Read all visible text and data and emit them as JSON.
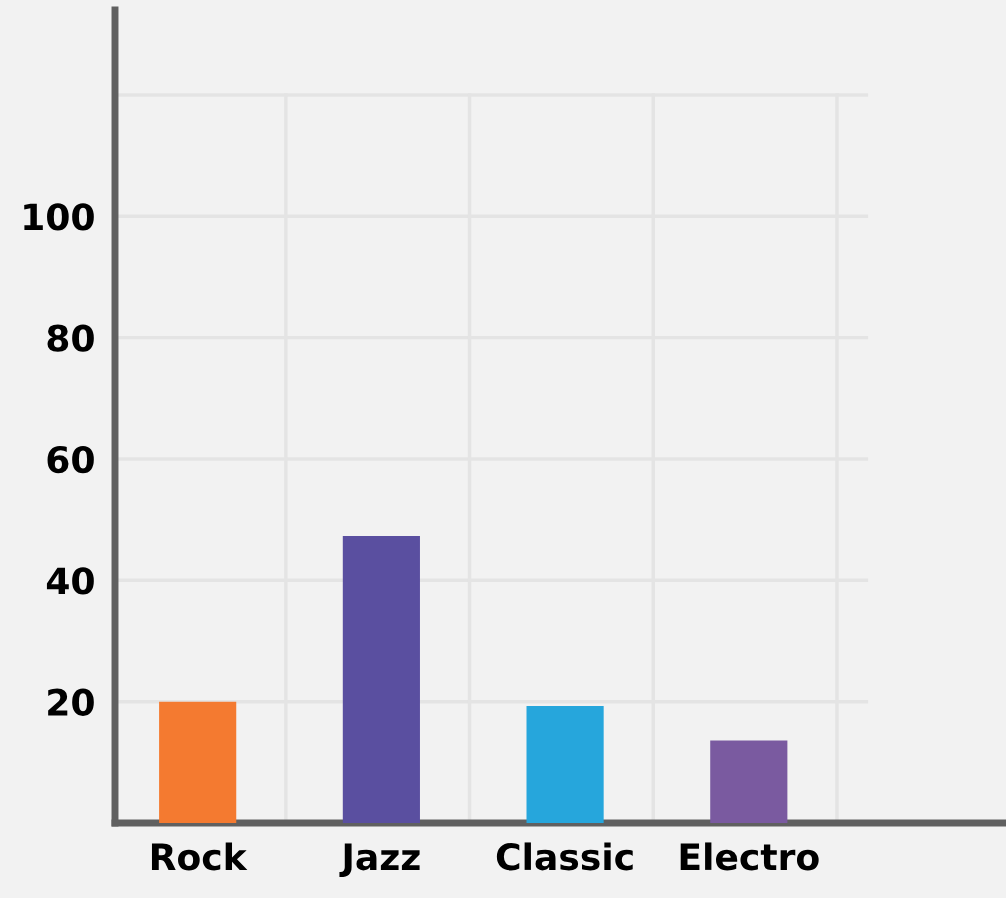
{
  "chart_data": {
    "type": "bar",
    "categories": [
      "Rock",
      "Jazz",
      "Classic",
      "Electro"
    ],
    "values": [
      20,
      47.3,
      19.3,
      13.6
    ],
    "colors": [
      "#f47a30",
      "#5a4fa0",
      "#26a6dc",
      "#7a5aa0"
    ],
    "ylim": [
      0,
      134
    ],
    "yticks": [
      20,
      40,
      60,
      80,
      100,
      {
        "value": 120,
        "label": null
      }
    ],
    "grid": true
  }
}
